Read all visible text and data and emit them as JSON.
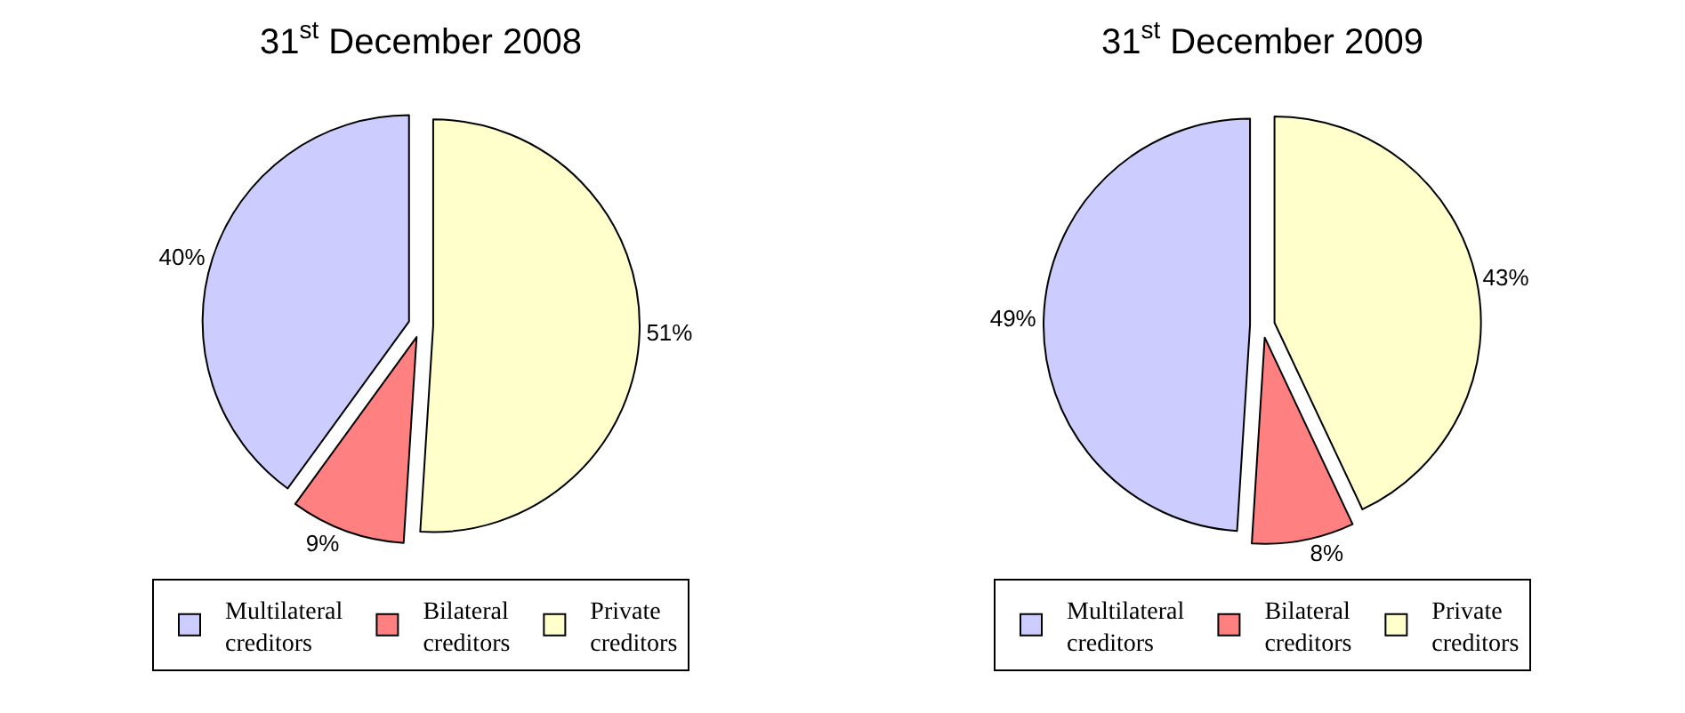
{
  "chart_data": [
    {
      "type": "pie",
      "title": "31$^{st}$ December 2008",
      "categories": [
        "Multilateral creditors",
        "Bilateral creditors",
        "Private creditors"
      ],
      "values": [
        40,
        9,
        51
      ],
      "value_labels": [
        "40%",
        "9%",
        "51%"
      ],
      "colors": [
        "#ccccff",
        "#ff8080",
        "#ffffcc"
      ],
      "legend": "bottom"
    },
    {
      "type": "pie",
      "title": "31$^{st}$ December 2009",
      "categories": [
        "Multilateral creditors",
        "Bilateral creditors",
        "Private creditors"
      ],
      "values": [
        49,
        8,
        43
      ],
      "value_labels": [
        "49%",
        "8%",
        "43%"
      ],
      "colors": [
        "#ccccff",
        "#ff8080",
        "#ffffcc"
      ],
      "legend": "bottom"
    }
  ]
}
